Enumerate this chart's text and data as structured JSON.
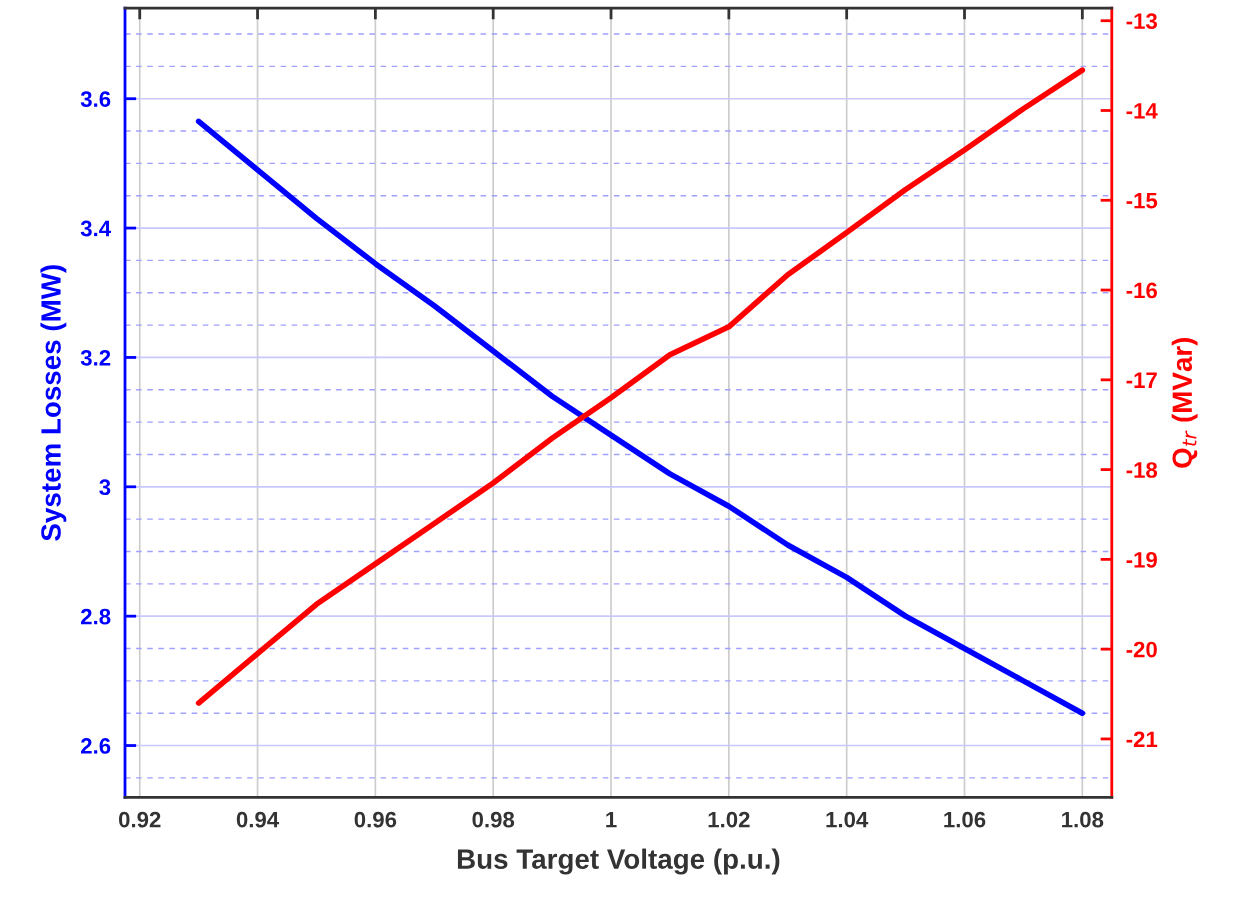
{
  "chart_data": {
    "type": "line",
    "xlabel": "Bus Target Voltage (p.u.)",
    "ylabel": "System Losses (MW)",
    "y2label": "Q$_{tr}$ (MVar)",
    "x": [
      0.93,
      0.94,
      0.95,
      0.96,
      0.97,
      0.98,
      0.99,
      1.0,
      1.01,
      1.02,
      1.03,
      1.04,
      1.05,
      1.06,
      1.07,
      1.08
    ],
    "series": [
      {
        "color": "#0000ff",
        "values": [
          3.565,
          3.49,
          3.415,
          3.345,
          3.28,
          3.21,
          3.14,
          3.08,
          3.02,
          2.97,
          2.91,
          2.86,
          2.8,
          2.75,
          2.7,
          2.65
        ]
      },
      {
        "color": "#ff0000",
        "axis": "y2",
        "values": [
          -20.6,
          -20.05,
          -19.5,
          -19.05,
          -18.6,
          -18.15,
          -17.65,
          -17.2,
          -16.72,
          -16.41,
          -15.83,
          -15.36,
          -14.88,
          -14.44,
          -13.98,
          -13.55
        ]
      }
    ],
    "xlim": [
      0.9175,
      1.085
    ],
    "xticks": [
      0.92,
      0.94,
      0.96,
      0.98,
      {
        "value": 1.0,
        "label": "1"
      },
      1.02,
      1.04,
      1.06,
      1.08
    ],
    "ylim": [
      2.52,
      3.74
    ],
    "yticks": [
      2.6,
      2.8,
      {
        "value": 3.0,
        "label": "3"
      },
      3.2,
      3.4,
      3.6
    ],
    "y2lim": [
      -21.65,
      -12.86
    ],
    "y2ticks": [
      -21,
      -20,
      -19,
      -18,
      -17,
      -16,
      -15,
      -14,
      -13
    ],
    "grid": true,
    "line_style": "solid",
    "marker": "none"
  }
}
